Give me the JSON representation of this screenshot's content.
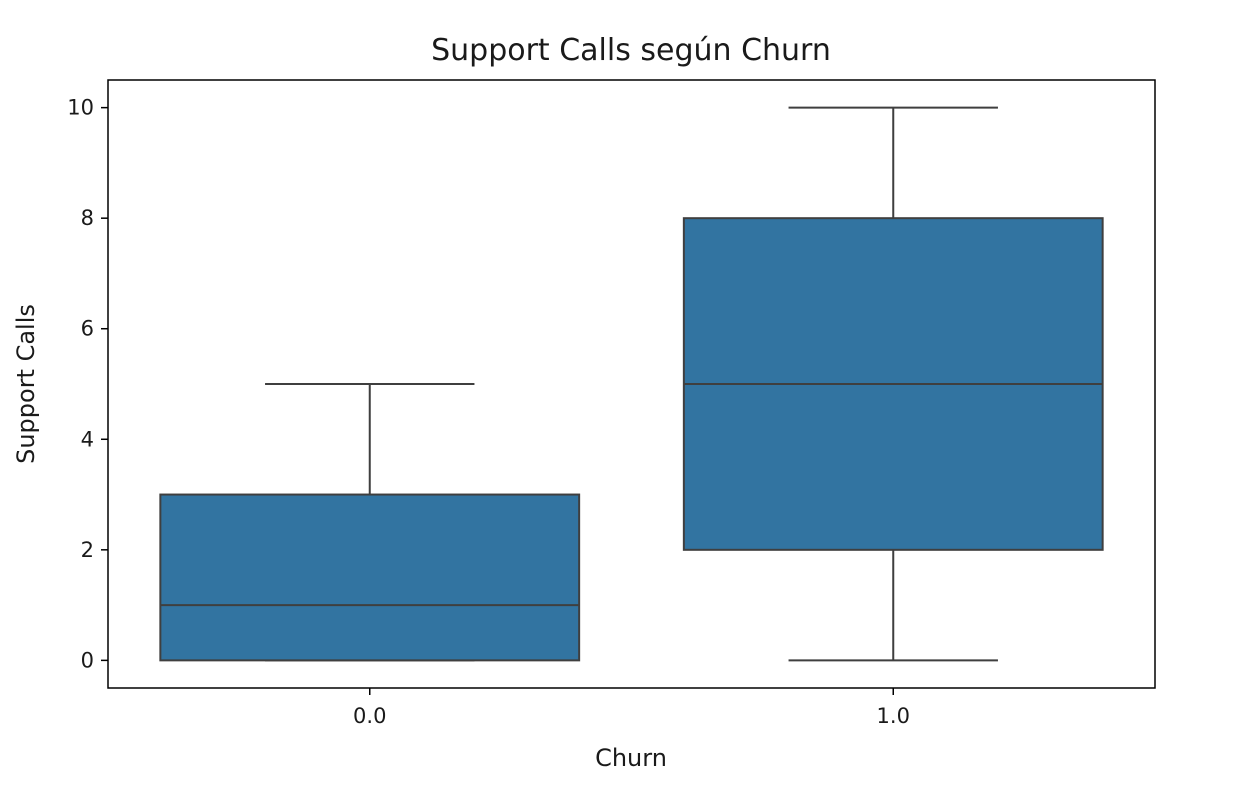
{
  "chart_data": {
    "type": "box",
    "title": "Support Calls según Churn",
    "xlabel": "Churn",
    "ylabel": "Support Calls",
    "ylim": [
      -0.5,
      10.5
    ],
    "yticks": [
      0,
      2,
      4,
      6,
      8,
      10
    ],
    "grid": false,
    "box_color": "#3274a1",
    "line_color": "#3f3f3f",
    "categories": [
      "0.0",
      "1.0"
    ],
    "boxes": [
      {
        "category": "0.0",
        "whisker_low": 0,
        "q1": 0,
        "median": 1,
        "q3": 3,
        "whisker_high": 5
      },
      {
        "category": "1.0",
        "whisker_low": 0,
        "q1": 2,
        "median": 5,
        "q3": 8,
        "whisker_high": 10
      }
    ]
  }
}
